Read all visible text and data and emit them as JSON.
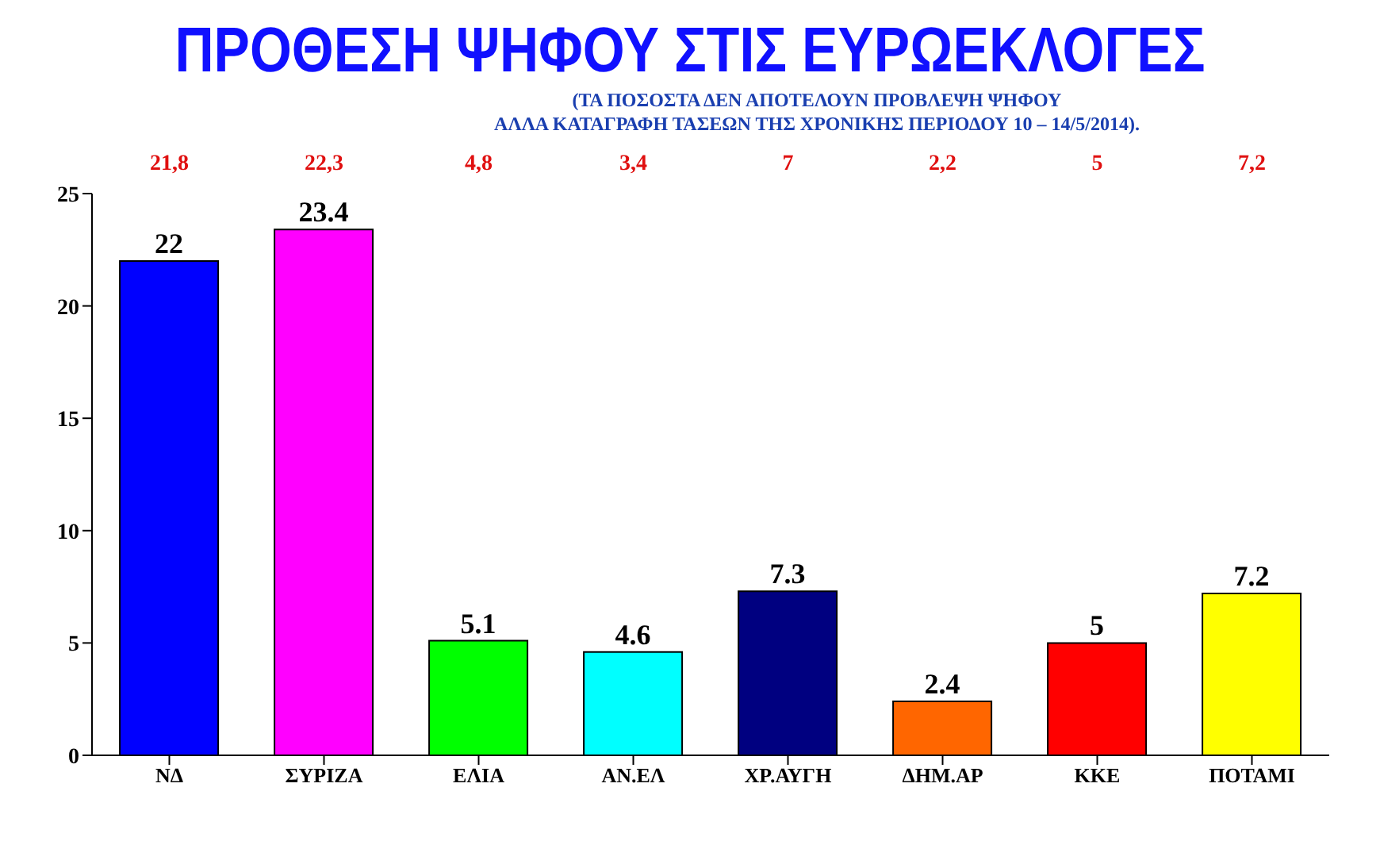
{
  "chart_data": {
    "type": "bar",
    "title": "ΠΡΟΘΕΣΗ ΨΗΦΟΥ ΣΤΙΣ ΕΥΡΩΕΚΛΟΓΕΣ",
    "subtitle": "(ΤΑ ΠΟΣΟΣΤΑ ΔΕΝ ΑΠΟΤΕΛΟΥΝ ΠΡΟΒΛΕΨΗ ΨΗΦΟΥ\nΑΛΛΑ ΚΑΤΑΓΡΑΦΗ ΤΑΣΕΩΝ ΤΗΣ ΧΡΟΝΙΚΗΣ ΠΕΡΙΟΔΟΥ 10 – 14/5/2014).",
    "categories": [
      "ΝΔ",
      "ΣΥΡΙΖΑ",
      "ΕΛΙΑ",
      "ΑΝ.ΕΛ",
      "ΧΡ.ΑΥΓΗ",
      "ΔΗΜ.ΑΡ",
      "ΚΚΕ",
      "ΠΟΤΑΜΙ"
    ],
    "values": [
      22,
      23.4,
      5.1,
      4.6,
      7.3,
      2.4,
      5,
      7.2
    ],
    "colors": [
      "#0000ff",
      "#ff00ff",
      "#00ff00",
      "#00ffff",
      "#000080",
      "#ff6600",
      "#ff0000",
      "#ffff00"
    ],
    "data_labels": true,
    "ylim": [
      0,
      25
    ],
    "yticks": [
      0,
      5,
      10,
      15,
      20,
      25
    ],
    "annotations": [
      "21,8",
      "22,3",
      "4,8",
      "3,4",
      "7",
      "2,2",
      "5",
      "7,2"
    ]
  }
}
